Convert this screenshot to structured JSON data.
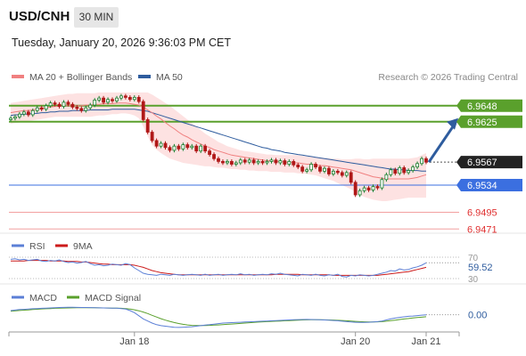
{
  "header": {
    "symbol": "USD/CNH",
    "interval": "30 MIN",
    "datetime": "Tuesday, January 20, 2026 9:36:03 PM CET"
  },
  "legend": {
    "ma20": "MA 20 + Bollinger Bands",
    "ma50": "MA 50",
    "credit": "Research © 2026 Trading Central",
    "rsi": "RSI",
    "rsi_ma": "9MA",
    "macd": "MACD",
    "macd_signal": "MACD Signal"
  },
  "colors": {
    "ma20": "#f08080",
    "ma50": "#2e5c9e",
    "bollinger_fill": "#fde2e2",
    "resistance": "#5aa02c",
    "support": "#3b6fe0",
    "lower_levels": "#f2a0a0",
    "arrow": "#2e5c9e",
    "price_box": "#222222",
    "rsi": "#5b7fd6",
    "rsi_ma": "#cc1a1a",
    "macd": "#5b7fd6",
    "macd_signal": "#5aa02c",
    "candle_up": "#1a7f2e",
    "candle_down": "#b01818"
  },
  "chart_data": [
    {
      "type": "line",
      "panel": "price",
      "x_tick_labels": [
        "Jan 18",
        "Jan 20",
        "Jan 21"
      ],
      "ylim": [
        6.9465,
        6.9672
      ],
      "levels": [
        {
          "name": "resistance-2",
          "value": 6.9648,
          "label": "6.9648",
          "style": "green-box"
        },
        {
          "name": "resistance-1",
          "value": 6.9625,
          "label": "6.9625",
          "style": "green-box"
        },
        {
          "name": "last-price",
          "value": 6.9567,
          "label": "6.9567",
          "style": "dark-box"
        },
        {
          "name": "support-1",
          "value": 6.9534,
          "label": "6.9534",
          "style": "blue-box"
        },
        {
          "name": "support-2",
          "value": 6.9495,
          "label": "6.9495",
          "style": "red-text"
        },
        {
          "name": "support-3",
          "value": 6.9471,
          "label": "6.9471",
          "style": "red-text"
        }
      ],
      "close": [
        6.963,
        6.9632,
        6.9636,
        6.9639,
        6.9635,
        6.9641,
        6.9645,
        6.9643,
        6.9648,
        6.9652,
        6.965,
        6.9647,
        6.9653,
        6.965,
        6.9646,
        6.9644,
        6.9641,
        6.9645,
        6.9649,
        6.9656,
        6.9659,
        6.9653,
        6.9657,
        6.9655,
        6.9659,
        6.9662,
        6.966,
        6.9657,
        6.966,
        6.9654,
        6.9628,
        6.961,
        6.9598,
        6.959,
        6.9594,
        6.9588,
        6.9584,
        6.959,
        6.9586,
        6.9592,
        6.9588,
        6.959,
        6.9583,
        6.959,
        6.9583,
        6.9578,
        6.9572,
        6.9568,
        6.9566,
        6.9568,
        6.9564,
        6.9566,
        6.957,
        6.9567,
        6.957,
        6.9566,
        6.9568,
        6.9566,
        6.9568,
        6.957,
        6.9566,
        6.9569,
        6.9564,
        6.9568,
        6.9563,
        6.956,
        6.9554,
        6.9556,
        6.9564,
        6.956,
        6.9554,
        6.9558,
        6.955,
        6.9554,
        6.9552,
        6.9548,
        6.9552,
        6.9538,
        6.952,
        6.9526,
        6.953,
        6.9527,
        6.9532,
        6.953,
        6.9542,
        6.9549,
        6.9556,
        6.9551,
        6.9559,
        6.9552,
        6.9555,
        6.956,
        6.9565,
        6.9572,
        6.9567
      ],
      "ma20": [
        6.9638,
        6.9639,
        6.964,
        6.9641,
        6.9641,
        6.9642,
        6.9643,
        6.9644,
        6.9645,
        6.9646,
        6.9647,
        6.9647,
        6.9648,
        6.9648,
        6.9648,
        6.9648,
        6.9648,
        6.9649,
        6.9649,
        6.965,
        6.965,
        6.9651,
        6.9651,
        6.9651,
        6.9652,
        6.9652,
        6.9652,
        6.9651,
        6.965,
        6.9649,
        6.9646,
        6.9642,
        6.9638,
        6.9633,
        6.9629,
        6.9624,
        6.9619,
        6.9615,
        6.961,
        6.9606,
        6.9603,
        6.9599,
        6.9596,
        6.9593,
        6.959,
        6.9588,
        6.9585,
        6.9583,
        6.9581,
        6.9579,
        6.9577,
        6.9576,
        6.9575,
        6.9574,
        6.9573,
        6.9572,
        6.9571,
        6.957,
        6.9569,
        6.9569,
        6.9568,
        6.9568,
        6.9567,
        6.9567,
        6.9566,
        6.9566,
        6.9565,
        6.9564,
        6.9564,
        6.9563,
        6.9562,
        6.9562,
        6.9561,
        6.956,
        6.9559,
        6.9558,
        6.9557,
        6.9556,
        6.9554,
        6.9552,
        6.955,
        6.9548,
        6.9546,
        6.9545,
        6.9544,
        6.9543,
        6.9543,
        6.9543,
        6.9543,
        6.9543,
        6.9543,
        6.9544,
        6.9545,
        6.9547,
        6.9549
      ],
      "bb_upper": [
        6.9652,
        6.9653,
        6.9654,
        6.9655,
        6.9656,
        6.9657,
        6.9658,
        6.9659,
        6.966,
        6.9661,
        6.9662,
        6.9663,
        6.9664,
        6.9665,
        6.9665,
        6.9666,
        6.9666,
        6.9666,
        6.9666,
        6.9666,
        6.9667,
        6.9667,
        6.9667,
        6.9667,
        6.9667,
        6.9667,
        6.9667,
        6.9667,
        6.9667,
        6.9667,
        6.9667,
        6.9667,
        6.9664,
        6.966,
        6.9656,
        6.9652,
        6.9648,
        6.9643,
        6.9638,
        6.9633,
        6.9628,
        6.9623,
        6.9618,
        6.9613,
        6.9608,
        6.9604,
        6.96,
        6.9596,
        6.9593,
        6.959,
        6.9588,
        6.9586,
        6.9584,
        6.9583,
        6.9582,
        6.9581,
        6.958,
        6.9579,
        6.9578,
        6.9578,
        6.9577,
        6.9577,
        6.9577,
        6.9577,
        6.9577,
        6.9577,
        6.9576,
        6.9575,
        6.9575,
        6.9574,
        6.9574,
        6.9573,
        6.9573,
        6.9572,
        6.9572,
        6.9571,
        6.9571,
        6.9571,
        6.9572,
        6.9572,
        6.9571,
        6.9571,
        6.9572,
        6.9572,
        6.9572,
        6.9572,
        6.9572,
        6.9572,
        6.9572,
        6.9572,
        6.9572,
        6.9573,
        6.9574,
        6.9577,
        6.958
      ],
      "bb_lower": [
        6.9622,
        6.9623,
        6.9624,
        6.9625,
        6.9626,
        6.9627,
        6.9628,
        6.9629,
        6.963,
        6.9631,
        6.9632,
        6.9632,
        6.9632,
        6.9632,
        6.9632,
        6.9632,
        6.9632,
        6.9632,
        6.9632,
        6.9633,
        6.9634,
        6.9634,
        6.9635,
        6.9636,
        6.9636,
        6.9637,
        6.9637,
        6.9636,
        6.9634,
        6.963,
        6.9618,
        6.9604,
        6.9592,
        6.9585,
        6.958,
        6.9576,
        6.9572,
        6.957,
        6.9568,
        6.9566,
        6.9565,
        6.9564,
        6.9563,
        6.9562,
        6.9561,
        6.9561,
        6.956,
        6.9559,
        6.9559,
        6.9558,
        6.9557,
        6.9557,
        6.9556,
        6.9556,
        6.9555,
        6.9555,
        6.9554,
        6.9554,
        6.9554,
        6.9553,
        6.9553,
        6.9553,
        6.9552,
        6.9552,
        6.9552,
        6.9551,
        6.9551,
        6.955,
        6.9549,
        6.9548,
        6.9546,
        6.9544,
        6.9542,
        6.954,
        6.9537,
        6.9534,
        6.9531,
        6.9528,
        6.9524,
        6.952,
        6.9517,
        6.9515,
        6.9513,
        6.9512,
        6.9511,
        6.9511,
        6.9512,
        6.9513,
        6.9514,
        6.9515,
        6.9516,
        6.9516,
        6.9516,
        6.9516,
        6.9516
      ],
      "ma50": [
        6.9634,
        6.9635,
        6.9635,
        6.9636,
        6.9636,
        6.9637,
        6.9637,
        6.9638,
        6.9638,
        6.9639,
        6.9639,
        6.964,
        6.964,
        6.964,
        6.9641,
        6.9641,
        6.9641,
        6.9641,
        6.9642,
        6.9642,
        6.9642,
        6.9642,
        6.9642,
        6.9643,
        6.9643,
        6.9643,
        6.9643,
        6.9643,
        6.9643,
        6.9642,
        6.9641,
        6.964,
        6.9638,
        6.9636,
        6.9634,
        6.9632,
        6.963,
        6.9628,
        6.9626,
        6.9624,
        6.9622,
        6.962,
        6.9618,
        6.9616,
        6.9614,
        6.9612,
        6.961,
        6.9608,
        6.9606,
        6.9604,
        6.9602,
        6.96,
        6.9598,
        6.9596,
        6.9594,
        6.9592,
        6.959,
        6.9588,
        6.9587,
        6.9585,
        6.9584,
        6.9583,
        6.9581,
        6.958,
        6.9579,
        6.9578,
        6.9577,
        6.9576,
        6.9575,
        6.9574,
        6.9573,
        6.9572,
        6.9571,
        6.957,
        6.9569,
        6.9568,
        6.9567,
        6.9566,
        6.9565,
        6.9564,
        6.9563,
        6.9562,
        6.9561,
        6.956,
        6.9559,
        6.9558,
        6.9557,
        6.9557,
        6.9556,
        6.9556,
        6.9555,
        6.9555,
        6.9555,
        6.9554,
        6.9554
      ],
      "forecast": {
        "from": 6.9567,
        "to": 6.9625
      }
    },
    {
      "type": "line",
      "panel": "rsi",
      "ylim": [
        25,
        75
      ],
      "levels": [
        {
          "value": 70,
          "label": "70"
        },
        {
          "value": 30,
          "label": "30"
        }
      ],
      "last_value_label": "59.52",
      "rsi": [
        66,
        67,
        65,
        66,
        64,
        65,
        66,
        63,
        62,
        64,
        63,
        65,
        62,
        60,
        61,
        59,
        60,
        62,
        58,
        55,
        56,
        54,
        55,
        57,
        56,
        55,
        58,
        56,
        50,
        45,
        40,
        38,
        37,
        36,
        38,
        37,
        36,
        38,
        37,
        36,
        37,
        38,
        37,
        36,
        38,
        36,
        37,
        38,
        36,
        37,
        38,
        37,
        39,
        37,
        38,
        36,
        37,
        38,
        37,
        39,
        38,
        40,
        38,
        37,
        36,
        35,
        38,
        37,
        36,
        38,
        36,
        35,
        37,
        36,
        38,
        34,
        33,
        36,
        35,
        37,
        36,
        35,
        36,
        38,
        40,
        42,
        45,
        44,
        48,
        46,
        47,
        50,
        52,
        55,
        59.52
      ],
      "rsi_ma": [
        63,
        63,
        63,
        63,
        64,
        64,
        64,
        64,
        64,
        63,
        63,
        63,
        63,
        62,
        62,
        62,
        61,
        61,
        60,
        59,
        58,
        57,
        57,
        56,
        56,
        56,
        56,
        56,
        55,
        53,
        51,
        48,
        45,
        43,
        41,
        40,
        39,
        38,
        37,
        37,
        37,
        37,
        37,
        37,
        37,
        37,
        37,
        37,
        37,
        37,
        37,
        37,
        37,
        37,
        37,
        37,
        37,
        37,
        37,
        37,
        38,
        38,
        38,
        38,
        38,
        38,
        37,
        37,
        37,
        37,
        37,
        37,
        37,
        36,
        36,
        36,
        36,
        36,
        36,
        36,
        36,
        36,
        36,
        36,
        37,
        38,
        39,
        40,
        41,
        42,
        43,
        45,
        47,
        49,
        51
      ]
    },
    {
      "type": "line",
      "panel": "macd",
      "ylim": [
        -1.4,
        1.0
      ],
      "last_value_label": "0.00",
      "macd": [
        0.4,
        0.45,
        0.5,
        0.52,
        0.55,
        0.58,
        0.6,
        0.62,
        0.64,
        0.66,
        0.68,
        0.7,
        0.71,
        0.72,
        0.72,
        0.71,
        0.7,
        0.7,
        0.69,
        0.68,
        0.67,
        0.66,
        0.65,
        0.64,
        0.63,
        0.6,
        0.55,
        0.4,
        0.2,
        -0.1,
        -0.4,
        -0.6,
        -0.8,
        -0.95,
        -1.05,
        -1.1,
        -1.15,
        -1.2,
        -1.22,
        -1.2,
        -1.18,
        -1.15,
        -1.1,
        -1.05,
        -1.0,
        -0.95,
        -0.9,
        -0.85,
        -0.8,
        -0.78,
        -0.76,
        -0.74,
        -0.72,
        -0.7,
        -0.68,
        -0.66,
        -0.64,
        -0.62,
        -0.6,
        -0.58,
        -0.56,
        -0.54,
        -0.52,
        -0.5,
        -0.48,
        -0.47,
        -0.46,
        -0.45,
        -0.46,
        -0.47,
        -0.48,
        -0.5,
        -0.52,
        -0.55,
        -0.58,
        -0.62,
        -0.66,
        -0.7,
        -0.72,
        -0.74,
        -0.74,
        -0.72,
        -0.7,
        -0.66,
        -0.6,
        -0.5,
        -0.4,
        -0.32,
        -0.25,
        -0.2,
        -0.15,
        -0.12,
        -0.08,
        -0.04,
        0.0
      ],
      "signal": [
        0.35,
        0.38,
        0.41,
        0.44,
        0.47,
        0.5,
        0.53,
        0.56,
        0.58,
        0.6,
        0.62,
        0.64,
        0.65,
        0.66,
        0.67,
        0.68,
        0.68,
        0.68,
        0.68,
        0.68,
        0.67,
        0.66,
        0.65,
        0.64,
        0.63,
        0.62,
        0.6,
        0.55,
        0.48,
        0.38,
        0.26,
        0.12,
        -0.05,
        -0.22,
        -0.38,
        -0.52,
        -0.64,
        -0.75,
        -0.84,
        -0.92,
        -0.98,
        -1.02,
        -1.04,
        -1.04,
        -1.03,
        -1.02,
        -1.0,
        -0.98,
        -0.95,
        -0.92,
        -0.89,
        -0.86,
        -0.83,
        -0.8,
        -0.77,
        -0.74,
        -0.71,
        -0.68,
        -0.66,
        -0.64,
        -0.62,
        -0.6,
        -0.58,
        -0.56,
        -0.54,
        -0.52,
        -0.5,
        -0.49,
        -0.48,
        -0.48,
        -0.48,
        -0.49,
        -0.5,
        -0.51,
        -0.53,
        -0.55,
        -0.58,
        -0.61,
        -0.64,
        -0.66,
        -0.68,
        -0.69,
        -0.69,
        -0.68,
        -0.66,
        -0.62,
        -0.57,
        -0.52,
        -0.46,
        -0.41,
        -0.36,
        -0.31,
        -0.27,
        -0.23,
        -0.19
      ]
    }
  ]
}
